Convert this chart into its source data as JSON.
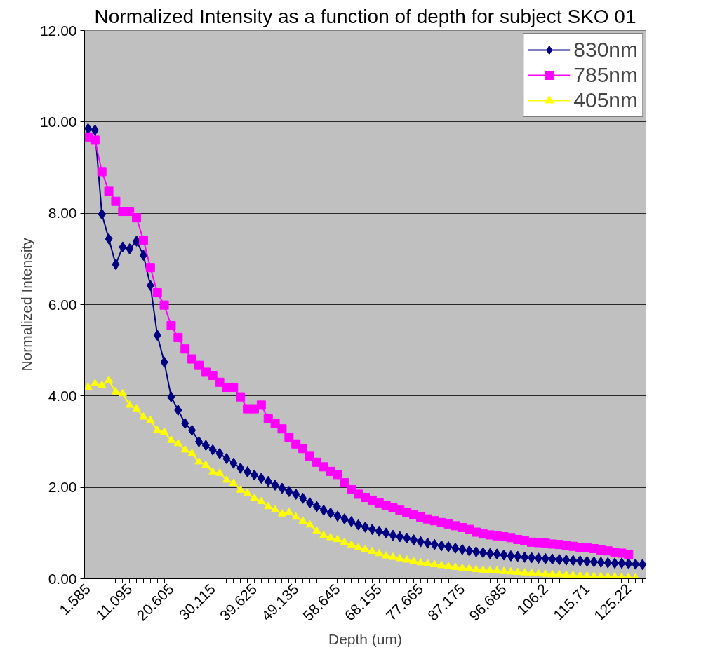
{
  "chart_data": {
    "type": "line",
    "title": "Normalized Intensity as a function of depth for subject SKO 01",
    "xlabel": "Depth (um)",
    "ylabel": "Normalized Intensity",
    "categories": [
      "1.585",
      null,
      null,
      null,
      null,
      null,
      "11.095",
      null,
      null,
      null,
      null,
      null,
      "20.605",
      null,
      null,
      null,
      null,
      null,
      "30.115",
      null,
      null,
      null,
      null,
      null,
      "39.625",
      null,
      null,
      null,
      null,
      null,
      "49.135",
      null,
      null,
      null,
      null,
      null,
      "58.645",
      null,
      null,
      null,
      null,
      null,
      "68.155",
      null,
      null,
      null,
      null,
      null,
      "77.665",
      null,
      null,
      null,
      null,
      null,
      "87.175",
      null,
      null,
      null,
      null,
      null,
      "96.685",
      null,
      null,
      null,
      null,
      null,
      "106.2",
      null,
      null,
      null,
      null,
      null,
      "115.71",
      null,
      null,
      null,
      null,
      null,
      "125.22",
      null,
      null
    ],
    "series": [
      {
        "name": "830nm",
        "color": "#000080",
        "marker": "diamond",
        "values": [
          9.85,
          9.82,
          7.98,
          7.44,
          6.88,
          7.26,
          7.22,
          7.39,
          7.08,
          6.42,
          5.33,
          4.74,
          3.98,
          3.69,
          3.4,
          3.25,
          3.0,
          2.92,
          2.82,
          2.74,
          2.63,
          2.53,
          2.42,
          2.34,
          2.27,
          2.2,
          2.13,
          2.05,
          1.98,
          1.91,
          1.85,
          1.76,
          1.66,
          1.58,
          1.5,
          1.44,
          1.37,
          1.31,
          1.25,
          1.18,
          1.13,
          1.08,
          1.04,
          1.0,
          0.95,
          0.92,
          0.89,
          0.85,
          0.81,
          0.78,
          0.75,
          0.72,
          0.7,
          0.67,
          0.64,
          0.61,
          0.59,
          0.57,
          0.55,
          0.54,
          0.52,
          0.5,
          0.49,
          0.47,
          0.46,
          0.45,
          0.44,
          0.43,
          0.42,
          0.41,
          0.4,
          0.39,
          0.38,
          0.37,
          0.36,
          0.35,
          0.34,
          0.34,
          0.33,
          0.32,
          0.31
        ]
      },
      {
        "name": "785nm",
        "color": "#ff00ff",
        "marker": "square",
        "values": [
          9.67,
          9.6,
          8.91,
          8.48,
          8.26,
          8.04,
          8.04,
          7.9,
          7.41,
          6.81,
          6.26,
          5.99,
          5.54,
          5.28,
          5.03,
          4.81,
          4.67,
          4.52,
          4.45,
          4.3,
          4.19,
          4.19,
          3.98,
          3.72,
          3.72,
          3.8,
          3.5,
          3.4,
          3.28,
          3.1,
          2.95,
          2.85,
          2.68,
          2.55,
          2.45,
          2.35,
          2.28,
          2.1,
          1.95,
          1.85,
          1.78,
          1.72,
          1.66,
          1.61,
          1.55,
          1.5,
          1.45,
          1.4,
          1.35,
          1.31,
          1.27,
          1.23,
          1.2,
          1.16,
          1.12,
          1.08,
          1.02,
          0.98,
          0.96,
          0.94,
          0.92,
          0.9,
          0.86,
          0.83,
          0.8,
          0.79,
          0.78,
          0.76,
          0.75,
          0.73,
          0.71,
          0.69,
          0.68,
          0.66,
          0.63,
          0.61,
          0.58,
          0.56,
          0.53,
          null,
          null
        ]
      },
      {
        "name": "405nm",
        "color": "#ffff00",
        "marker": "triangle",
        "values": [
          4.19,
          4.27,
          4.23,
          4.34,
          4.09,
          4.05,
          3.8,
          3.72,
          3.54,
          3.47,
          3.25,
          3.21,
          3.03,
          2.96,
          2.82,
          2.74,
          2.56,
          2.49,
          2.34,
          2.31,
          2.16,
          2.09,
          1.94,
          1.87,
          1.76,
          1.69,
          1.58,
          1.51,
          1.42,
          1.45,
          1.35,
          1.26,
          1.18,
          1.05,
          0.95,
          0.9,
          0.86,
          0.8,
          0.74,
          0.68,
          0.64,
          0.6,
          0.55,
          0.5,
          0.47,
          0.44,
          0.41,
          0.38,
          0.35,
          0.33,
          0.31,
          0.29,
          0.27,
          0.25,
          0.23,
          0.22,
          0.2,
          0.19,
          0.18,
          0.17,
          0.16,
          0.15,
          0.14,
          0.13,
          0.12,
          0.11,
          0.1,
          0.09,
          0.09,
          0.08,
          0.07,
          0.06,
          0.06,
          0.05,
          0.05,
          0.04,
          0.04,
          0.03,
          0.03,
          0.02,
          null
        ]
      }
    ],
    "ylim": [
      0,
      12
    ],
    "yticks": [
      {
        "value": 0,
        "label": "0.00"
      },
      {
        "value": 2,
        "label": "2.00"
      },
      {
        "value": 4,
        "label": "4.00"
      },
      {
        "value": 6,
        "label": "6.00"
      },
      {
        "value": 8,
        "label": "8.00"
      },
      {
        "value": 10,
        "label": "10.00"
      },
      {
        "value": 12,
        "label": "12.00"
      }
    ],
    "grid": "y",
    "legend": "top right",
    "line_style": "solid"
  }
}
